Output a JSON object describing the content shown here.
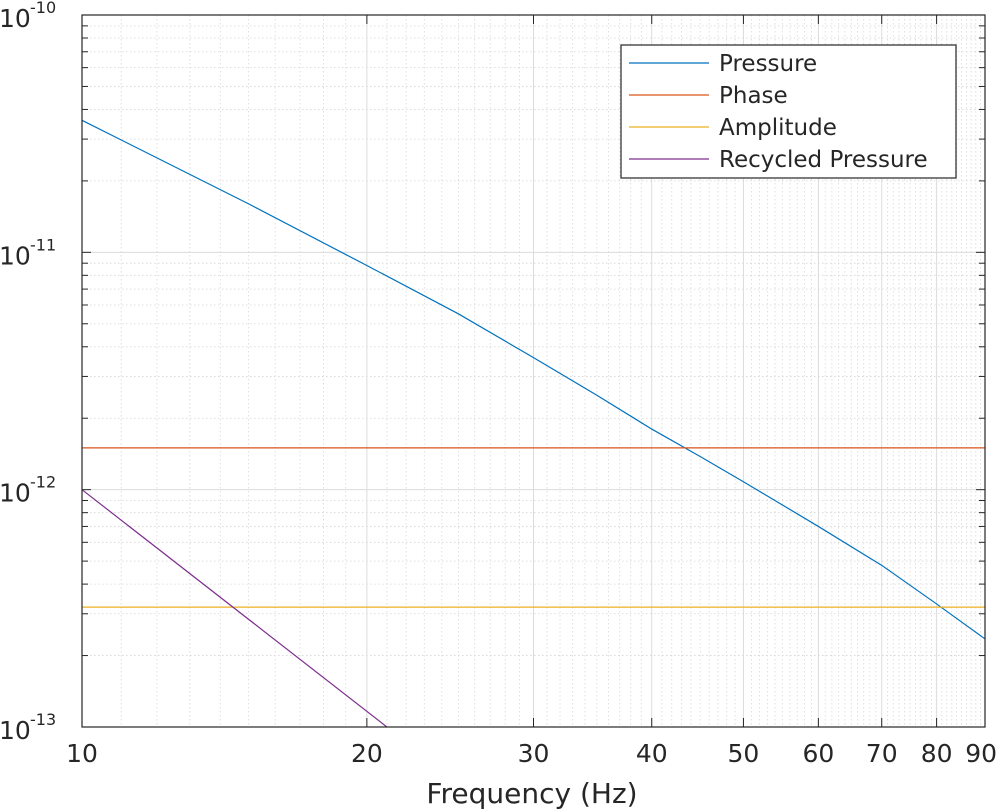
{
  "chart_data": {
    "type": "line",
    "title": "",
    "xlabel": "Frequency (Hz)",
    "ylabel": "",
    "xscale": "log",
    "yscale": "log",
    "xlim": [
      10,
      90
    ],
    "ylim": [
      1e-13,
      1e-10
    ],
    "grid": true,
    "legend_position": "top-right",
    "x_ticks": [
      {
        "value": 10,
        "label": "10"
      },
      {
        "value": 20,
        "label": "20"
      },
      {
        "value": 30,
        "label": "30"
      },
      {
        "value": 40,
        "label": "40"
      },
      {
        "value": 50,
        "label": "50"
      },
      {
        "value": 60,
        "label": "60"
      },
      {
        "value": 70,
        "label": "70"
      },
      {
        "value": 80,
        "label": "80"
      },
      {
        "value": 90,
        "label": "90"
      }
    ],
    "y_ticks": [
      {
        "value": 1e-10,
        "base": "10",
        "exp": "-10"
      },
      {
        "value": 1e-11,
        "base": "10",
        "exp": "-11"
      },
      {
        "value": 1e-12,
        "base": "10",
        "exp": "-12"
      },
      {
        "value": 1e-13,
        "base": "10",
        "exp": "-13"
      }
    ],
    "series": [
      {
        "name": "Pressure",
        "color": "#0072bd",
        "x": [
          10,
          12,
          15,
          20,
          25,
          30,
          35,
          40,
          45,
          50,
          60,
          70,
          80,
          90
        ],
        "y": [
          3.6e-11,
          2.5e-11,
          1.6e-11,
          8.8e-12,
          5.5e-12,
          3.6e-12,
          2.5e-12,
          1.8e-12,
          1.38e-12,
          1.08e-12,
          7e-13,
          4.8e-13,
          3.3e-13,
          2.35e-13
        ]
      },
      {
        "name": "Phase",
        "color": "#d95319",
        "x": [
          10,
          90
        ],
        "y": [
          1.5e-12,
          1.5e-12
        ]
      },
      {
        "name": "Amplitude",
        "color": "#edb120",
        "x": [
          10,
          90
        ],
        "y": [
          3.2e-13,
          3.2e-13
        ]
      },
      {
        "name": "Recycled Pressure",
        "color": "#7e2f8e",
        "x": [
          10,
          21
        ],
        "y": [
          1e-12,
          1e-13
        ]
      }
    ]
  }
}
